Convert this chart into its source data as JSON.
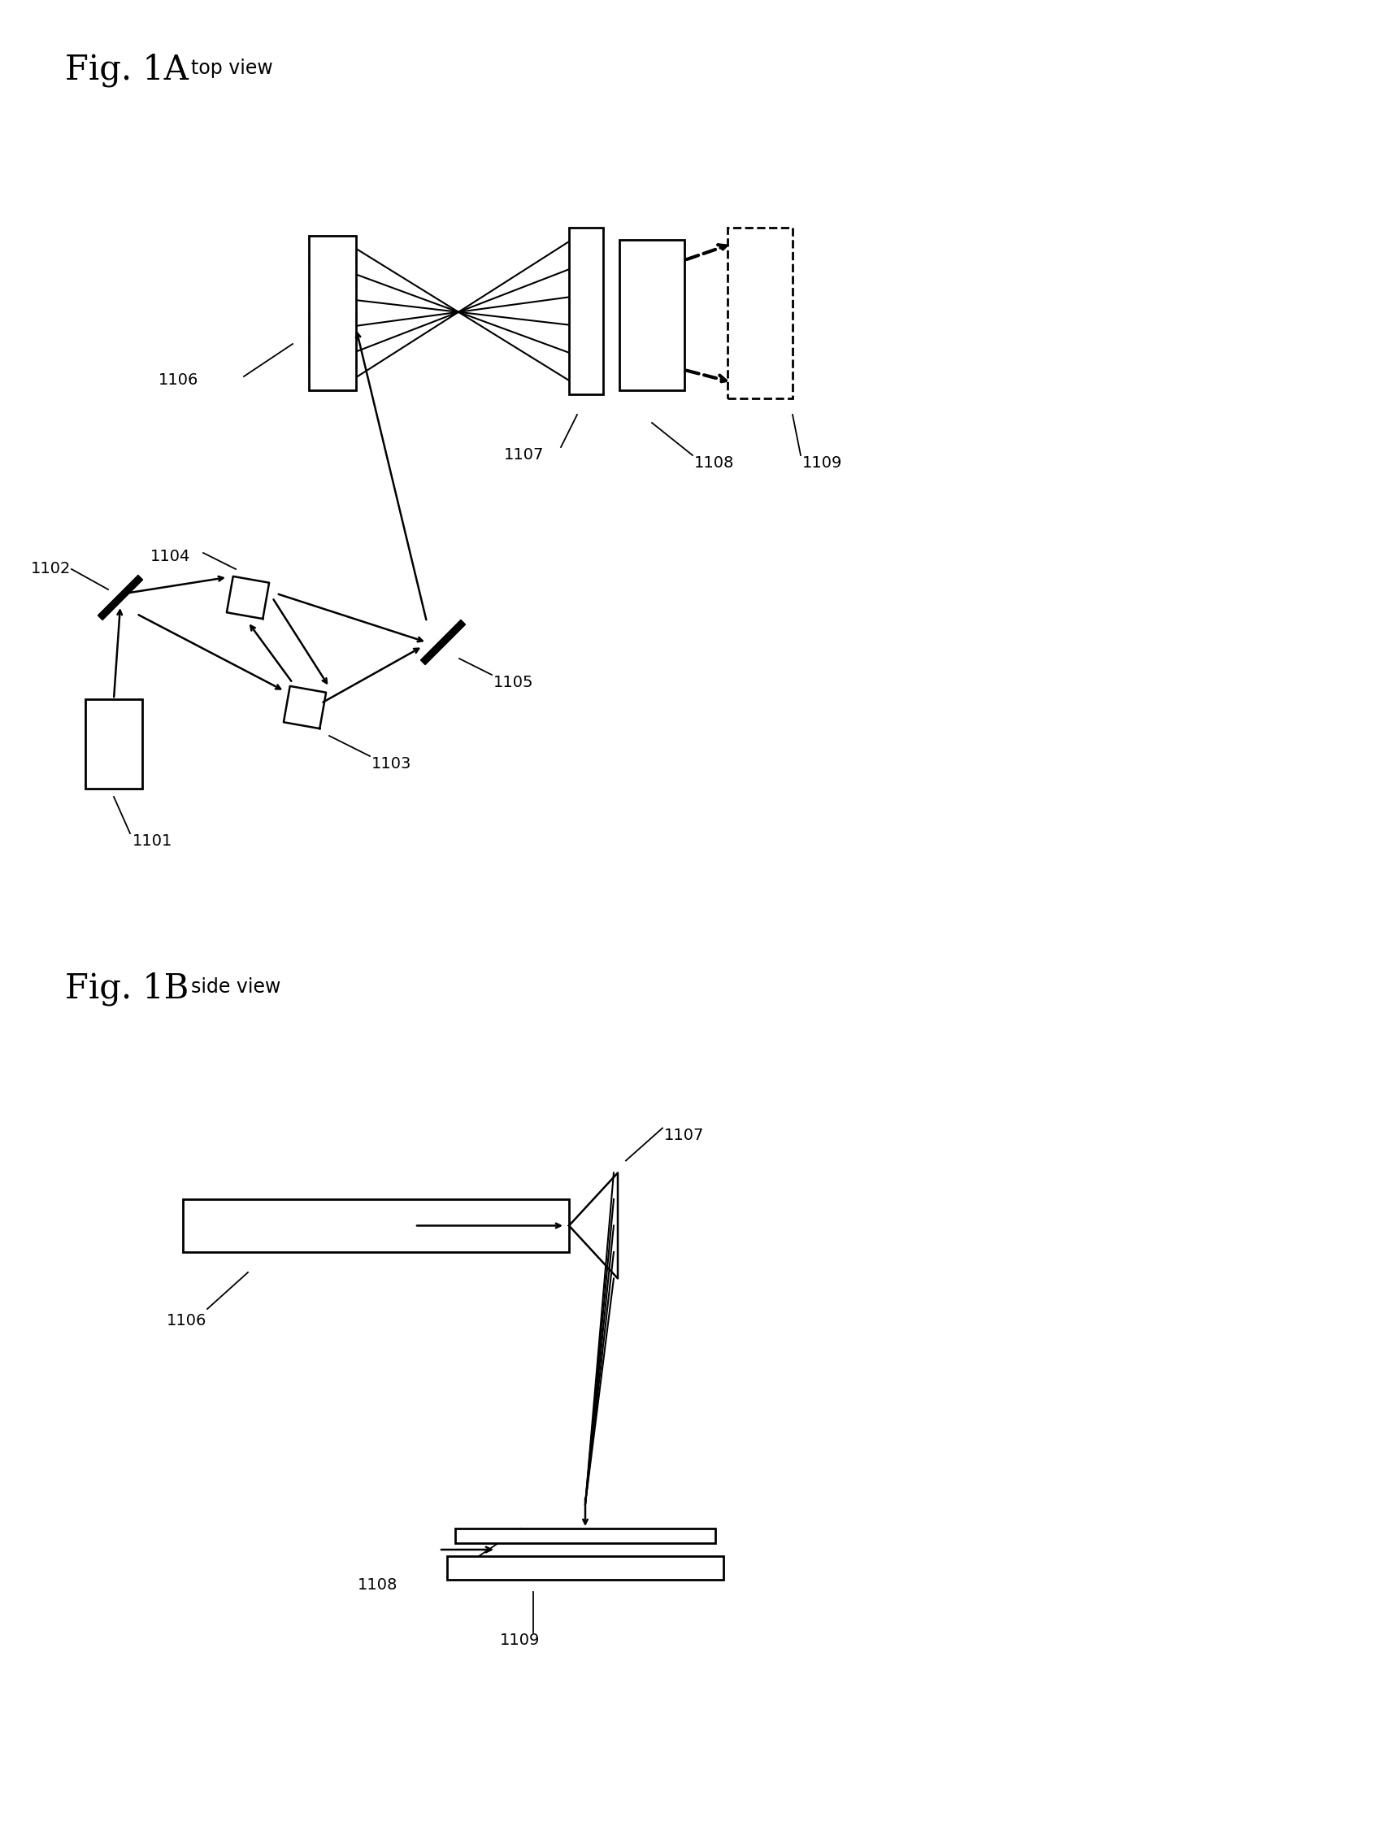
{
  "background_color": "#ffffff",
  "fig1A_title": "Fig. 1A",
  "fig1A_subtitle": "top view",
  "fig1B_title": "Fig. 1B",
  "fig1B_subtitle": "side view",
  "lw": 1.8
}
